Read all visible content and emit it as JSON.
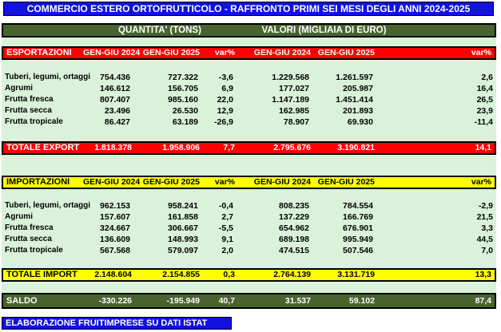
{
  "title": "COMMERCIO ESTERO ORTOFRUTTICOLO - RAFFRONTO PRIMI SEI MESI DEGLI ANNI 2024-2025",
  "group_headers": {
    "quantity": "QUANTITA' (TONS)",
    "value": "VALORI (MIGLIAIA DI EURO)"
  },
  "columns": [
    "GEN-GIU 2024",
    "GEN-GIU 2025",
    "var%",
    "GEN-GIU 2024",
    "GEN-GIU 2025",
    "var%"
  ],
  "sections": {
    "export": {
      "label": "ESPORTAZIONI",
      "rows": [
        {
          "label": "Tuberi, legumi, ortaggi",
          "values": [
            "754.436",
            "727.322",
            "-3,6",
            "1.229.568",
            "1.261.597",
            "2,6"
          ]
        },
        {
          "label": "Agrumi",
          "values": [
            "146.612",
            "156.705",
            "6,9",
            "177.027",
            "205.987",
            "16,4"
          ]
        },
        {
          "label": "Frutta fresca",
          "values": [
            "807.407",
            "985.160",
            "22,0",
            "1.147.189",
            "1.451.414",
            "26,5"
          ]
        },
        {
          "label": "Frutta secca",
          "values": [
            "23.496",
            "26.530",
            "12,9",
            "162.985",
            "201.893",
            "23,9"
          ]
        },
        {
          "label": "Frutta tropicale",
          "values": [
            "86.427",
            "63.189",
            "-26,9",
            "78.907",
            "69.930",
            "-11,4"
          ]
        }
      ],
      "total": {
        "label": "TOTALE EXPORT",
        "values": [
          "1.818.378",
          "1.958.906",
          "7,7",
          "2.795.676",
          "3.190.821",
          "14,1"
        ]
      }
    },
    "import": {
      "label": "IMPORTAZIONI",
      "rows": [
        {
          "label": "Tuberi, legumi, ortaggi",
          "values": [
            "962.153",
            "958.241",
            "-0,4",
            "808.235",
            "784.554",
            "-2,9"
          ]
        },
        {
          "label": "Agrumi",
          "values": [
            "157.607",
            "161.858",
            "2,7",
            "137.229",
            "166.769",
            "21,5"
          ]
        },
        {
          "label": "Frutta fresca",
          "values": [
            "324.667",
            "306.667",
            "-5,5",
            "654.962",
            "676.901",
            "3,3"
          ]
        },
        {
          "label": "Frutta secca",
          "values": [
            "136.609",
            "148.993",
            "9,1",
            "689.198",
            "995.949",
            "44,5"
          ]
        },
        {
          "label": "Frutta tropicale",
          "values": [
            "567.568",
            "579.097",
            "2,0",
            "474.515",
            "507.546",
            "7,0"
          ]
        }
      ],
      "total": {
        "label": "TOTALE IMPORT",
        "values": [
          "2.148.604",
          "2.154.855",
          "0,3",
          "2.764.139",
          "3.131.719",
          "13,3"
        ]
      }
    }
  },
  "saldo": {
    "label": "SALDO",
    "values": [
      "-330.226",
      "-195.949",
      "40,7",
      "31.537",
      "59.102",
      "87,4"
    ]
  },
  "footer": "ELABORAZIONE FRUITIMPRESE SU DATI ISTAT",
  "colors": {
    "title_bg": "#1111e0",
    "header_bg": "#4a632e",
    "body_bg": "#d9f2d9",
    "export_accent": "#ff0000",
    "import_accent": "#ffff00",
    "saldo_bg": "#4a632e"
  }
}
